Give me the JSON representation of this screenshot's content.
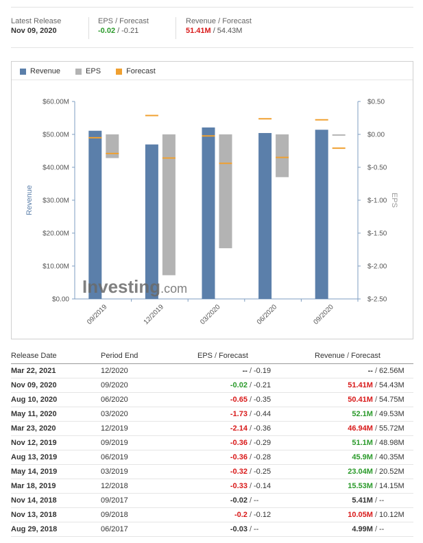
{
  "summary": {
    "latest_release_label": "Latest Release",
    "latest_release_value": "Nov 09, 2020",
    "eps_label": "EPS / Forecast",
    "eps_actual": "-0.02",
    "eps_forecast": "-0.21",
    "revenue_label": "Revenue / Forecast",
    "revenue_actual": "51.41M",
    "revenue_forecast": "54.43M",
    "slash": "/"
  },
  "colors": {
    "revenue": "#5b7faa",
    "eps": "#b3b3b3",
    "forecast": "#f0a030",
    "green": "#2a9a2a",
    "red": "#d81818"
  },
  "legend": [
    {
      "label": "Revenue",
      "color": "#5b7faa"
    },
    {
      "label": "EPS",
      "color": "#b3b3b3"
    },
    {
      "label": "Forecast",
      "color": "#f0a030"
    }
  ],
  "watermark": "Investing.com",
  "chart_data": {
    "type": "bar",
    "categories": [
      "09/2019",
      "12/2019",
      "03/2020",
      "06/2020",
      "09/2020"
    ],
    "series": [
      {
        "name": "Revenue",
        "axis": "left",
        "values": [
          51.1,
          46.94,
          52.1,
          50.41,
          51.41
        ]
      },
      {
        "name": "EPS",
        "axis": "right",
        "values": [
          -0.36,
          -2.14,
          -1.73,
          -0.65,
          -0.02
        ]
      },
      {
        "name": "Forecast",
        "axis": "both",
        "revenue_values": [
          48.98,
          55.72,
          49.53,
          54.75,
          54.43
        ],
        "eps_values": [
          -0.29,
          -0.36,
          -0.44,
          -0.35,
          -0.21
        ]
      }
    ],
    "ylabel": "Revenue",
    "y2label": "EPS",
    "ylim": [
      0,
      60
    ],
    "y2lim": [
      -2.5,
      0.5
    ],
    "yticks": [
      "$0.00",
      "$10.00M",
      "$20.00M",
      "$30.00M",
      "$40.00M",
      "$50.00M",
      "$60.00M"
    ],
    "y2ticks": [
      "$-2.50",
      "$-2.00",
      "$-1.50",
      "$-1.00",
      "$-0.50",
      "$0.00",
      "$0.50"
    ],
    "legend_position": "top-left",
    "grid": false
  },
  "table": {
    "headers": {
      "release_date": "Release Date",
      "period_end": "Period End",
      "eps": "EPS",
      "slash": "/",
      "forecast": "Forecast",
      "revenue": "Revenue"
    },
    "rows": [
      {
        "date": "Mar 22, 2021",
        "period": "12/2020",
        "eps": "--",
        "eps_fc": "-0.19",
        "rev": "--",
        "rev_fc": "62.56M",
        "eps_status": "none",
        "rev_status": "none"
      },
      {
        "date": "Nov 09, 2020",
        "period": "09/2020",
        "eps": "-0.02",
        "eps_fc": "-0.21",
        "rev": "51.41M",
        "rev_fc": "54.43M",
        "eps_status": "beat",
        "rev_status": "miss"
      },
      {
        "date": "Aug 10, 2020",
        "period": "06/2020",
        "eps": "-0.65",
        "eps_fc": "-0.35",
        "rev": "50.41M",
        "rev_fc": "54.75M",
        "eps_status": "miss",
        "rev_status": "miss"
      },
      {
        "date": "May 11, 2020",
        "period": "03/2020",
        "eps": "-1.73",
        "eps_fc": "-0.44",
        "rev": "52.1M",
        "rev_fc": "49.53M",
        "eps_status": "miss",
        "rev_status": "beat"
      },
      {
        "date": "Mar 23, 2020",
        "period": "12/2019",
        "eps": "-2.14",
        "eps_fc": "-0.36",
        "rev": "46.94M",
        "rev_fc": "55.72M",
        "eps_status": "miss",
        "rev_status": "miss"
      },
      {
        "date": "Nov 12, 2019",
        "period": "09/2019",
        "eps": "-0.36",
        "eps_fc": "-0.29",
        "rev": "51.1M",
        "rev_fc": "48.98M",
        "eps_status": "miss",
        "rev_status": "beat"
      },
      {
        "date": "Aug 13, 2019",
        "period": "06/2019",
        "eps": "-0.36",
        "eps_fc": "-0.28",
        "rev": "45.9M",
        "rev_fc": "40.35M",
        "eps_status": "miss",
        "rev_status": "beat"
      },
      {
        "date": "May 14, 2019",
        "period": "03/2019",
        "eps": "-0.32",
        "eps_fc": "-0.25",
        "rev": "23.04M",
        "rev_fc": "20.52M",
        "eps_status": "miss",
        "rev_status": "beat"
      },
      {
        "date": "Mar 18, 2019",
        "period": "12/2018",
        "eps": "-0.33",
        "eps_fc": "-0.14",
        "rev": "15.53M",
        "rev_fc": "14.15M",
        "eps_status": "miss",
        "rev_status": "beat"
      },
      {
        "date": "Nov 14, 2018",
        "period": "09/2017",
        "eps": "-0.02",
        "eps_fc": "--",
        "rev": "5.41M",
        "rev_fc": "--",
        "eps_status": "none",
        "rev_status": "none"
      },
      {
        "date": "Nov 13, 2018",
        "period": "09/2018",
        "eps": "-0.2",
        "eps_fc": "-0.12",
        "rev": "10.05M",
        "rev_fc": "10.12M",
        "eps_status": "miss",
        "rev_status": "miss"
      },
      {
        "date": "Aug 29, 2018",
        "period": "06/2017",
        "eps": "-0.03",
        "eps_fc": "--",
        "rev": "4.99M",
        "rev_fc": "--",
        "eps_status": "none",
        "rev_status": "none"
      }
    ]
  }
}
